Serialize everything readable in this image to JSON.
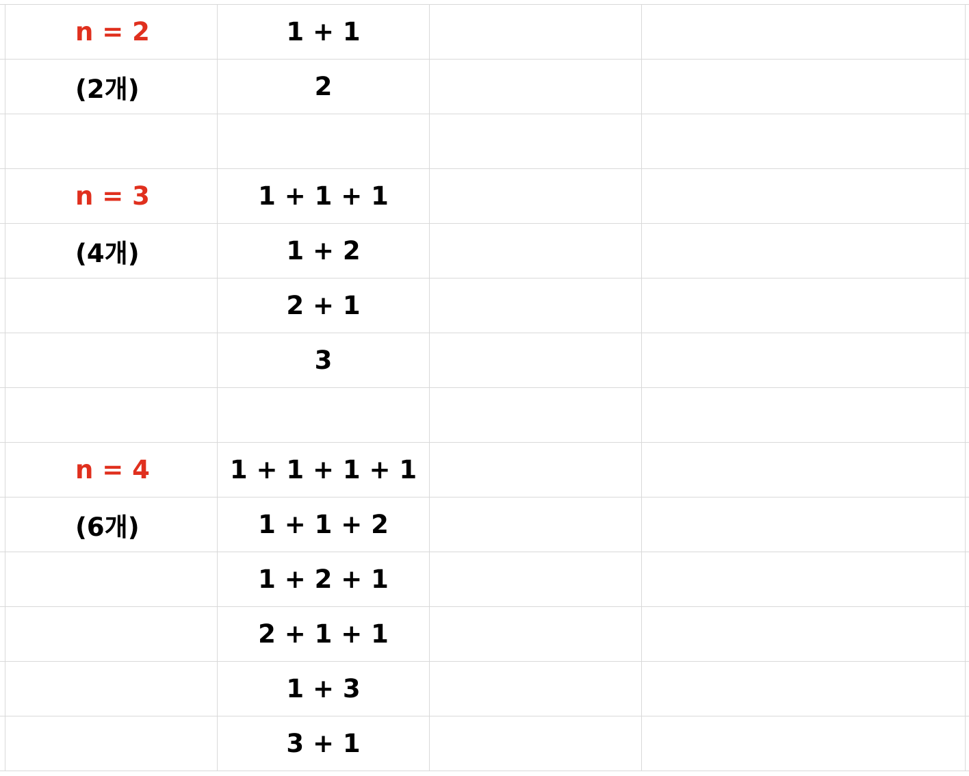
{
  "colors": {
    "label_red": "#e0301e",
    "grid": "#d9d9d9",
    "text": "#000000"
  },
  "rows": [
    {
      "label": "n = 2",
      "label_style": "red",
      "sum": "1 + 1"
    },
    {
      "label": "(2개)",
      "label_style": "black",
      "sum": "2"
    },
    {
      "label": "",
      "label_style": "black",
      "sum": ""
    },
    {
      "label": "n = 3",
      "label_style": "red",
      "sum": "1 + 1 + 1"
    },
    {
      "label": "(4개)",
      "label_style": "black",
      "sum": "1 + 2"
    },
    {
      "label": "",
      "label_style": "black",
      "sum": "2 + 1"
    },
    {
      "label": "",
      "label_style": "black",
      "sum": "3"
    },
    {
      "label": "",
      "label_style": "black",
      "sum": ""
    },
    {
      "label": "n = 4",
      "label_style": "red",
      "sum": "1 + 1 + 1 + 1"
    },
    {
      "label": "(6개)",
      "label_style": "black",
      "sum": "1 + 1 + 2"
    },
    {
      "label": "",
      "label_style": "black",
      "sum": "1 + 2 + 1"
    },
    {
      "label": "",
      "label_style": "black",
      "sum": "2 + 1 + 1"
    },
    {
      "label": "",
      "label_style": "black",
      "sum": "1 + 3"
    },
    {
      "label": "",
      "label_style": "black",
      "sum": "3 + 1"
    }
  ]
}
